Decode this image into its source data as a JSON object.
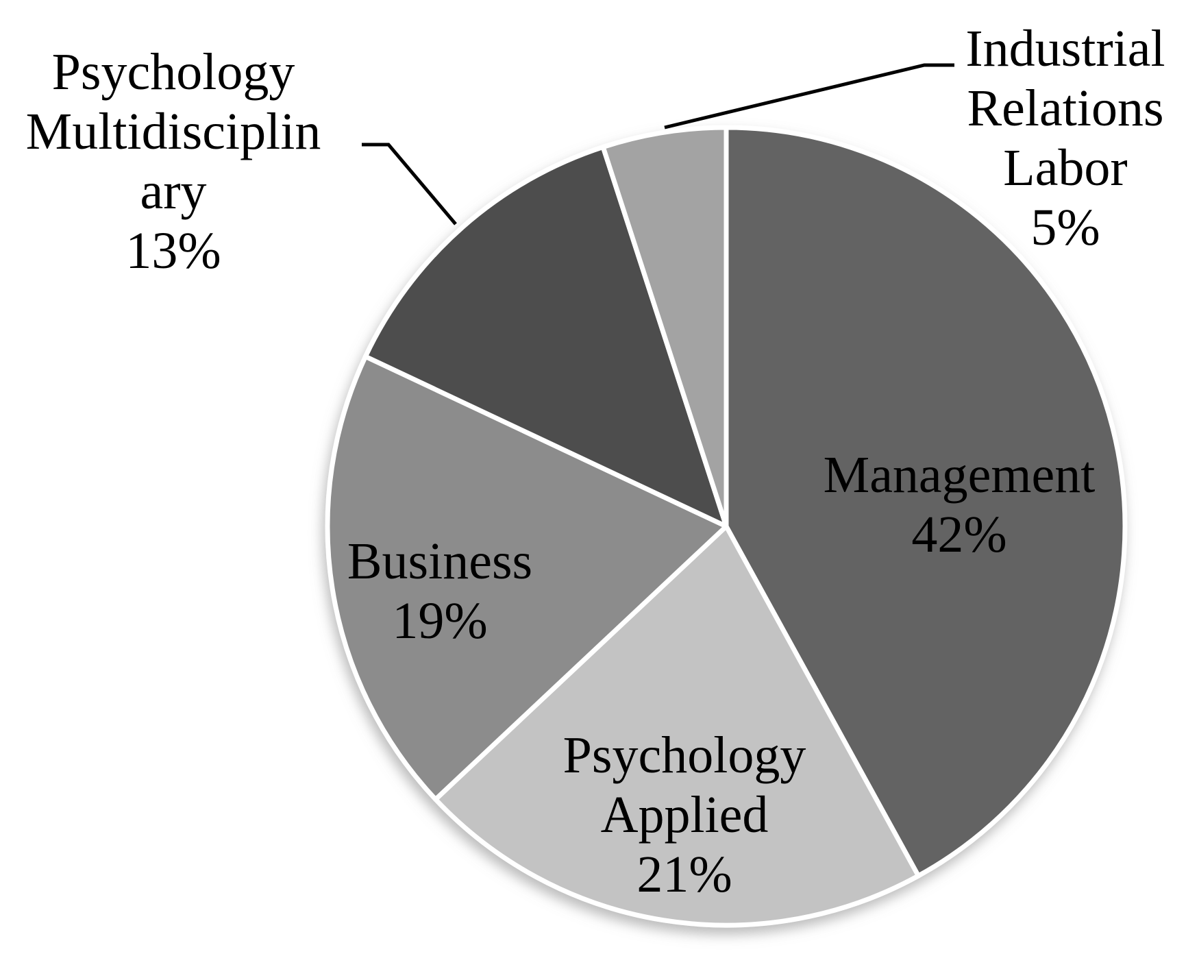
{
  "chart_data": {
    "type": "pie",
    "title": "",
    "start_angle_deg": 0,
    "direction": "clockwise",
    "legend_position": "callout-labels-with-leader-lines",
    "background_color": "#ffffff",
    "separator_color": "#ffffff",
    "text_color": "#000000",
    "leader_line_color": "#000000",
    "categories": [
      "Management",
      "Psychology Applied",
      "Business",
      "Psychology Multidisciplinary",
      "Industrial Relations Labor"
    ],
    "values": [
      42,
      21,
      19,
      13,
      5
    ],
    "slices": [
      {
        "id": "management",
        "label": "Management",
        "value": 42,
        "pct_label": "42%",
        "color": "#646464",
        "label_lines": [
          "Management"
        ],
        "label_placement": "inside"
      },
      {
        "id": "psychology-applied",
        "label": "Psychology Applied",
        "value": 21,
        "pct_label": "21%",
        "color": "#c3c3c3",
        "label_lines": [
          "Psychology",
          "Applied"
        ],
        "label_placement": "inside"
      },
      {
        "id": "business",
        "label": "Business",
        "value": 19,
        "pct_label": "19%",
        "color": "#8c8c8c",
        "label_lines": [
          "Business"
        ],
        "label_placement": "inside"
      },
      {
        "id": "psychology-multidisciplinary",
        "label": "Psychology Multidisciplinary",
        "value": 13,
        "pct_label": "13%",
        "color": "#4e4e4e",
        "label_lines": [
          "Psychology",
          "Multidisciplin",
          "ary"
        ],
        "label_placement": "outside-left"
      },
      {
        "id": "industrial-relations-labor",
        "label": "Industrial Relations Labor",
        "value": 5,
        "pct_label": "5%",
        "color": "#a3a3a3",
        "label_lines": [
          "Industrial",
          "Relations",
          "Labor"
        ],
        "label_placement": "outside-right"
      }
    ]
  }
}
